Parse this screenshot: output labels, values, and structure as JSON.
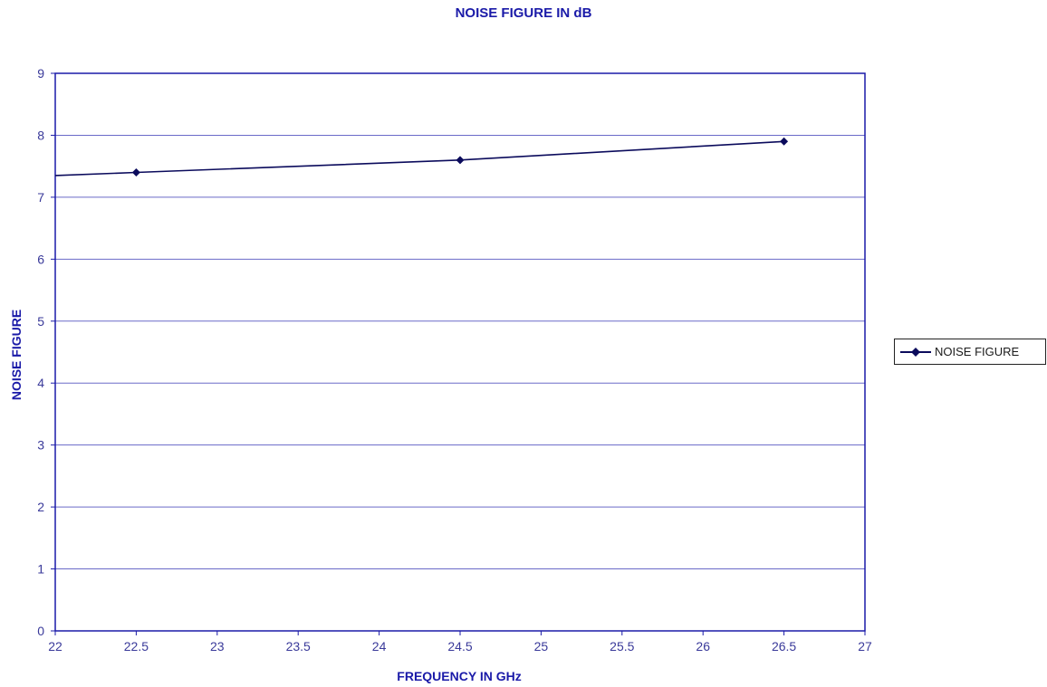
{
  "chart_data": {
    "type": "line",
    "title": "NOISE FIGURE IN dB",
    "xlabel": "FREQUENCY IN GHz",
    "ylabel": "NOISE FIGURE",
    "xlim": [
      22,
      27
    ],
    "ylim": [
      0,
      9
    ],
    "x_ticks": [
      "22",
      "22.5",
      "23",
      "23.5",
      "24",
      "24.5",
      "25",
      "25.5",
      "26",
      "26.5",
      "27"
    ],
    "y_ticks": [
      "0",
      "1",
      "2",
      "3",
      "4",
      "5",
      "6",
      "7",
      "8",
      "9"
    ],
    "grid": "horizontal",
    "legend_position": "right",
    "series": [
      {
        "name": "NOISE FIGURE",
        "color": "#0b0b5c",
        "marker": "diamond",
        "points": [
          {
            "x": 22.5,
            "y": 7.4
          },
          {
            "x": 24.5,
            "y": 7.6
          },
          {
            "x": 26.5,
            "y": 7.9
          }
        ],
        "line_start": {
          "x": 22,
          "y": 7.35
        }
      }
    ]
  },
  "colors": {
    "axis_frame": "#1a1aa8",
    "gridline": "#6a6ac8",
    "text": "#1a1aa8"
  }
}
